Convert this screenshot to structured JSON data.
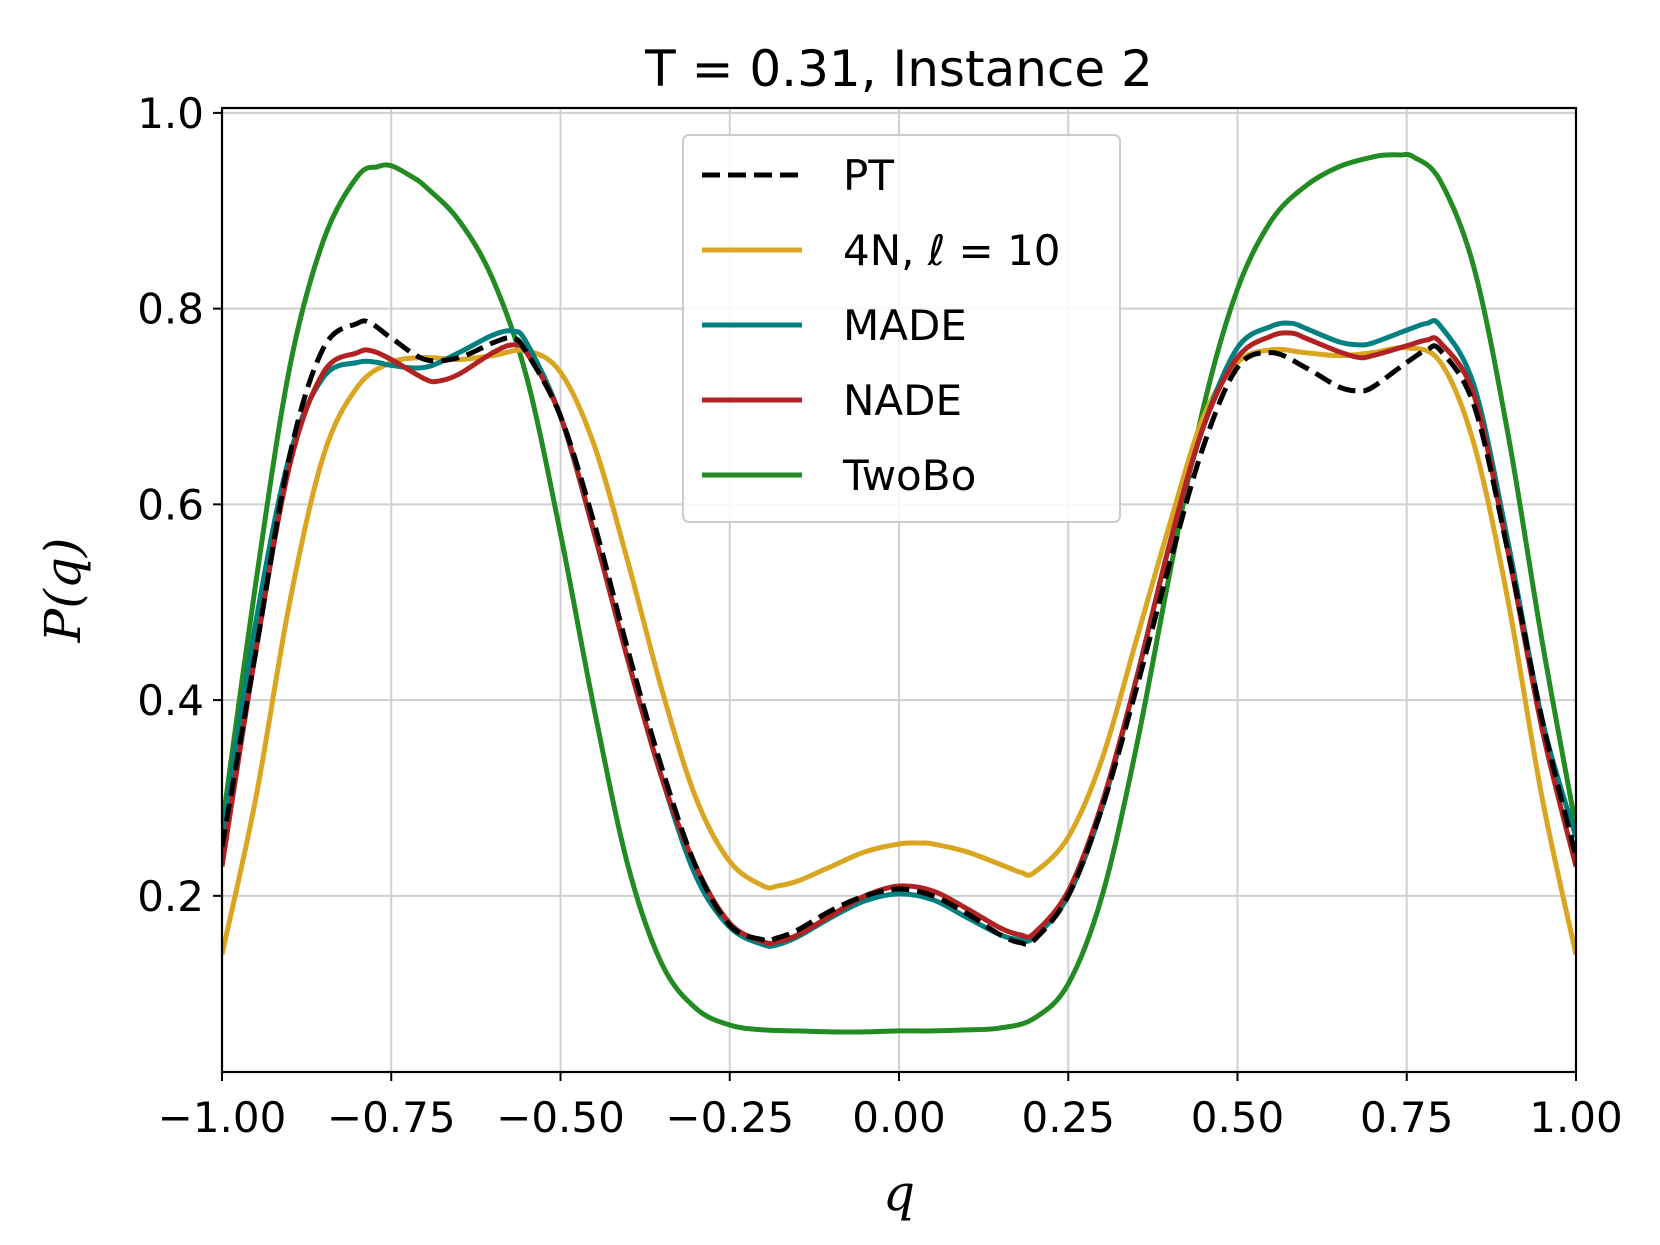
{
  "chart_data": {
    "type": "line",
    "title": "T = 0.31, Instance 2",
    "xlabel": "q",
    "ylabel": "P(q)",
    "xlim": [
      -1.0,
      1.0
    ],
    "ylim": [
      0.02,
      1.005
    ],
    "xticks": [
      -1.0,
      -0.75,
      -0.5,
      -0.25,
      0.0,
      0.25,
      0.5,
      0.75,
      1.0
    ],
    "xtick_labels": [
      "−1.00",
      "−0.75",
      "−0.50",
      "−0.25",
      "0.00",
      "0.25",
      "0.50",
      "0.75",
      "1.00"
    ],
    "yticks": [
      0.2,
      0.4,
      0.6,
      0.8,
      1.0
    ],
    "ytick_labels": [
      "0.2",
      "0.4",
      "0.6",
      "0.8",
      "1.0"
    ],
    "grid": true,
    "legend_position": "top-center",
    "series": [
      {
        "name": "PT",
        "color": "#000000",
        "dash": "dashed",
        "x": [
          -1.0,
          -0.95,
          -0.9,
          -0.85,
          -0.8,
          -0.78,
          -0.75,
          -0.7,
          -0.65,
          -0.6,
          -0.57,
          -0.55,
          -0.5,
          -0.45,
          -0.4,
          -0.35,
          -0.3,
          -0.25,
          -0.2,
          -0.18,
          -0.15,
          -0.1,
          -0.05,
          0.0,
          0.05,
          0.1,
          0.15,
          0.18,
          0.2,
          0.25,
          0.3,
          0.35,
          0.4,
          0.45,
          0.5,
          0.55,
          0.6,
          0.65,
          0.68,
          0.7,
          0.75,
          0.78,
          0.8,
          0.85,
          0.9,
          0.95,
          1.0
        ],
        "y": [
          0.25,
          0.45,
          0.65,
          0.76,
          0.785,
          0.785,
          0.77,
          0.748,
          0.75,
          0.765,
          0.77,
          0.755,
          0.69,
          0.58,
          0.45,
          0.33,
          0.23,
          0.17,
          0.155,
          0.157,
          0.165,
          0.185,
          0.2,
          0.207,
          0.2,
          0.182,
          0.16,
          0.152,
          0.155,
          0.2,
          0.29,
          0.41,
          0.54,
          0.66,
          0.74,
          0.755,
          0.74,
          0.72,
          0.716,
          0.72,
          0.745,
          0.758,
          0.757,
          0.7,
          0.55,
          0.38,
          0.24
        ]
      },
      {
        "name": "4N, ℓ = 10",
        "color": "#DAA520",
        "dash": "solid",
        "x": [
          -1.0,
          -0.95,
          -0.9,
          -0.85,
          -0.8,
          -0.75,
          -0.7,
          -0.65,
          -0.6,
          -0.55,
          -0.5,
          -0.45,
          -0.4,
          -0.35,
          -0.3,
          -0.25,
          -0.2,
          -0.18,
          -0.15,
          -0.1,
          -0.05,
          0.0,
          0.03,
          0.05,
          0.1,
          0.15,
          0.18,
          0.2,
          0.25,
          0.3,
          0.35,
          0.4,
          0.45,
          0.5,
          0.55,
          0.6,
          0.65,
          0.7,
          0.75,
          0.8,
          0.85,
          0.9,
          0.95,
          1.0
        ],
        "y": [
          0.14,
          0.3,
          0.5,
          0.65,
          0.72,
          0.745,
          0.75,
          0.748,
          0.752,
          0.757,
          0.735,
          0.66,
          0.54,
          0.41,
          0.3,
          0.235,
          0.21,
          0.21,
          0.215,
          0.23,
          0.245,
          0.253,
          0.254,
          0.253,
          0.245,
          0.232,
          0.224,
          0.224,
          0.26,
          0.34,
          0.46,
          0.58,
          0.69,
          0.745,
          0.758,
          0.755,
          0.752,
          0.755,
          0.76,
          0.745,
          0.66,
          0.5,
          0.3,
          0.14
        ]
      },
      {
        "name": "MADE",
        "color": "#008080",
        "dash": "solid",
        "x": [
          -1.0,
          -0.95,
          -0.9,
          -0.85,
          -0.8,
          -0.77,
          -0.75,
          -0.7,
          -0.65,
          -0.6,
          -0.57,
          -0.55,
          -0.5,
          -0.45,
          -0.4,
          -0.35,
          -0.3,
          -0.25,
          -0.2,
          -0.18,
          -0.15,
          -0.1,
          -0.05,
          0.0,
          0.05,
          0.1,
          0.15,
          0.18,
          0.2,
          0.25,
          0.3,
          0.35,
          0.4,
          0.45,
          0.5,
          0.55,
          0.58,
          0.6,
          0.65,
          0.68,
          0.7,
          0.75,
          0.78,
          0.8,
          0.85,
          0.9,
          0.95,
          1.0
        ],
        "y": [
          0.26,
          0.48,
          0.65,
          0.73,
          0.745,
          0.745,
          0.742,
          0.74,
          0.755,
          0.773,
          0.777,
          0.765,
          0.69,
          0.57,
          0.44,
          0.32,
          0.22,
          0.168,
          0.15,
          0.15,
          0.158,
          0.178,
          0.195,
          0.202,
          0.196,
          0.178,
          0.16,
          0.155,
          0.158,
          0.2,
          0.29,
          0.42,
          0.56,
          0.68,
          0.76,
          0.782,
          0.785,
          0.78,
          0.766,
          0.763,
          0.765,
          0.778,
          0.785,
          0.782,
          0.72,
          0.56,
          0.38,
          0.26
        ]
      },
      {
        "name": "NADE",
        "color": "#B22222",
        "dash": "solid",
        "x": [
          -1.0,
          -0.95,
          -0.9,
          -0.85,
          -0.8,
          -0.78,
          -0.75,
          -0.7,
          -0.68,
          -0.65,
          -0.6,
          -0.57,
          -0.55,
          -0.5,
          -0.45,
          -0.4,
          -0.35,
          -0.3,
          -0.25,
          -0.2,
          -0.18,
          -0.15,
          -0.1,
          -0.05,
          0.0,
          0.05,
          0.1,
          0.15,
          0.18,
          0.2,
          0.25,
          0.3,
          0.35,
          0.4,
          0.45,
          0.5,
          0.55,
          0.58,
          0.6,
          0.65,
          0.68,
          0.7,
          0.75,
          0.78,
          0.8,
          0.85,
          0.9,
          0.95,
          1.0
        ],
        "y": [
          0.23,
          0.45,
          0.64,
          0.735,
          0.755,
          0.757,
          0.748,
          0.728,
          0.726,
          0.733,
          0.755,
          0.763,
          0.755,
          0.69,
          0.57,
          0.44,
          0.32,
          0.23,
          0.172,
          0.153,
          0.153,
          0.16,
          0.18,
          0.2,
          0.21,
          0.205,
          0.187,
          0.167,
          0.16,
          0.162,
          0.205,
          0.295,
          0.42,
          0.56,
          0.68,
          0.75,
          0.772,
          0.775,
          0.77,
          0.756,
          0.75,
          0.752,
          0.762,
          0.768,
          0.765,
          0.71,
          0.55,
          0.37,
          0.23
        ]
      },
      {
        "name": "TwoBo",
        "color": "#228B22",
        "dash": "solid",
        "x": [
          -1.0,
          -0.95,
          -0.9,
          -0.85,
          -0.8,
          -0.77,
          -0.75,
          -0.72,
          -0.7,
          -0.65,
          -0.6,
          -0.55,
          -0.5,
          -0.45,
          -0.4,
          -0.35,
          -0.3,
          -0.25,
          -0.2,
          -0.15,
          -0.1,
          -0.05,
          0.0,
          0.05,
          0.1,
          0.15,
          0.2,
          0.25,
          0.3,
          0.35,
          0.4,
          0.45,
          0.5,
          0.55,
          0.6,
          0.65,
          0.7,
          0.72,
          0.74,
          0.76,
          0.8,
          0.85,
          0.9,
          0.95,
          1.0
        ],
        "y": [
          0.27,
          0.52,
          0.74,
          0.87,
          0.935,
          0.945,
          0.946,
          0.935,
          0.925,
          0.89,
          0.83,
          0.73,
          0.57,
          0.39,
          0.23,
          0.13,
          0.085,
          0.068,
          0.063,
          0.062,
          0.061,
          0.061,
          0.062,
          0.062,
          0.063,
          0.065,
          0.075,
          0.11,
          0.2,
          0.35,
          0.53,
          0.7,
          0.82,
          0.89,
          0.925,
          0.945,
          0.955,
          0.957,
          0.957,
          0.955,
          0.93,
          0.84,
          0.67,
          0.46,
          0.27
        ]
      }
    ]
  }
}
